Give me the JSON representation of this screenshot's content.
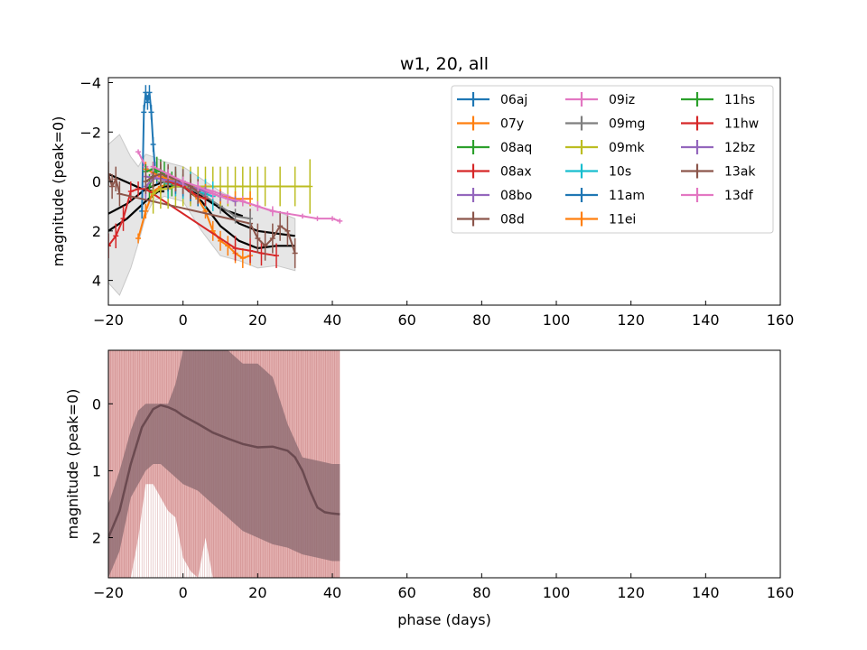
{
  "chart_data": [
    {
      "type": "line",
      "title": "w1, 20, all",
      "xlabel": "",
      "ylabel": "magnitude (peak=0)",
      "xlim": [
        -20,
        160
      ],
      "ylim": [
        5,
        -4.2
      ],
      "y_inverted": true,
      "xticks": [
        -20,
        0,
        20,
        40,
        60,
        80,
        100,
        120,
        140,
        160
      ],
      "yticks": [
        -4,
        -2,
        0,
        2,
        4
      ],
      "legend": {
        "placement": "top-right",
        "columns": 3
      },
      "series": [
        {
          "name": "06aj",
          "color": "#1f77b4",
          "x": [
            -11,
            -10.5,
            -10,
            -9.5,
            -9,
            -8.5,
            -8,
            -7.5,
            -7
          ],
          "y": [
            1.2,
            -2.8,
            -3.6,
            -3.2,
            -3.6,
            -2.8,
            -1.5,
            -0.5,
            -0.2
          ],
          "err": [
            0.3,
            0.3,
            0.3,
            0.3,
            0.3,
            0.3,
            0.3,
            0.3,
            0.3
          ]
        },
        {
          "name": "07y",
          "color": "#ff7f0e",
          "x": [
            -12,
            -10,
            -8,
            -6,
            -4,
            -2,
            0,
            2,
            4,
            6,
            8,
            10,
            12,
            14,
            16,
            18
          ],
          "y": [
            2.3,
            1.2,
            0.4,
            0.2,
            0.1,
            0.1,
            0.2,
            0.4,
            0.7,
            1.2,
            2.0,
            2.4,
            2.6,
            2.9,
            3.1,
            3.0
          ],
          "err": [
            0.2,
            0.3,
            0.3,
            0.3,
            0.3,
            0.3,
            0.3,
            0.3,
            0.3,
            0.3,
            0.4,
            0.4,
            0.4,
            0.4,
            0.4,
            0.4
          ]
        },
        {
          "name": "08aq",
          "color": "#2ca02c",
          "x": [
            -9,
            -8,
            -7,
            -6,
            -5,
            -4,
            -3
          ],
          "y": [
            0.2,
            -0.3,
            -0.5,
            -0.4,
            -0.3,
            0.0,
            0.1
          ],
          "err": [
            0.5,
            0.5,
            0.5,
            0.5,
            0.5,
            0.5,
            0.5
          ]
        },
        {
          "name": "08ax",
          "color": "#d62728",
          "x": [
            -20,
            -18,
            -16,
            -14,
            -12,
            -10,
            14,
            18,
            21,
            25
          ],
          "y": [
            2.6,
            2.2,
            1.5,
            0.4,
            0.3,
            0.3,
            2.7,
            2.8,
            2.9,
            3.0
          ],
          "err": [
            0.5,
            0.5,
            0.5,
            0.4,
            0.3,
            0.3,
            0.5,
            0.5,
            0.5,
            0.5
          ]
        },
        {
          "name": "08bo",
          "color": "#9467bd",
          "x": [
            -10,
            -8,
            -6,
            -4,
            -2,
            0,
            2
          ],
          "y": [
            0.2,
            -0.1,
            -0.2,
            -0.1,
            0.0,
            0.2,
            0.4
          ],
          "err": [
            0.5,
            0.5,
            0.5,
            0.5,
            0.5,
            0.5,
            0.5
          ]
        },
        {
          "name": "08d",
          "color": "#8c564b",
          "x": [
            -20,
            -19,
            -18,
            -17,
            18,
            20,
            22,
            24,
            26,
            28,
            30
          ],
          "y": [
            -0.3,
            0.2,
            -0.1,
            0.5,
            1.7,
            2.3,
            2.6,
            2.3,
            1.8,
            2.0,
            2.9
          ],
          "err": [
            0.5,
            0.5,
            0.5,
            0.5,
            0.6,
            0.6,
            0.6,
            0.6,
            0.6,
            0.6,
            0.6
          ]
        },
        {
          "name": "09iz",
          "color": "#e377c2",
          "x": [
            -12,
            -10,
            -8,
            -6,
            -4,
            -2,
            0,
            4,
            8,
            12,
            16,
            20,
            24,
            28,
            32,
            36,
            40,
            42
          ],
          "y": [
            -1.2,
            -0.6,
            -0.3,
            -0.1,
            0.0,
            0.0,
            0.1,
            0.2,
            0.4,
            0.6,
            0.8,
            1.0,
            1.2,
            1.3,
            1.4,
            1.5,
            1.5,
            1.6
          ],
          "err": [
            0.1,
            0.1,
            0.1,
            0.1,
            0.1,
            0.1,
            0.1,
            0.1,
            0.1,
            0.1,
            0.1,
            0.1,
            0.1,
            0.1,
            0.1,
            0.1,
            0.1,
            0.1
          ]
        },
        {
          "name": "09mg",
          "color": "#7f7f7f",
          "x": [
            -6,
            -2,
            2,
            6,
            10,
            14,
            18
          ],
          "y": [
            0.0,
            0.1,
            0.3,
            0.6,
            1.0,
            1.4,
            1.5
          ],
          "err": [
            0.3,
            0.3,
            0.3,
            0.3,
            0.3,
            0.3,
            0.3
          ]
        },
        {
          "name": "09mk",
          "color": "#bcbd22",
          "x": [
            -8,
            -6,
            -4,
            -2,
            0,
            2,
            4,
            6,
            8,
            10,
            12,
            14,
            16,
            18,
            20,
            22,
            26,
            30,
            34
          ],
          "y": [
            0.5,
            0.3,
            0.3,
            0.2,
            0.2,
            0.2,
            0.2,
            0.2,
            0.2,
            0.2,
            0.2,
            0.2,
            0.2,
            0.2,
            0.2,
            0.2,
            0.2,
            0.2,
            0.2
          ],
          "err": [
            0.8,
            0.8,
            0.8,
            0.8,
            0.8,
            0.8,
            0.8,
            0.8,
            0.8,
            0.8,
            0.8,
            0.8,
            0.8,
            0.8,
            0.8,
            0.8,
            0.8,
            0.8,
            1.1
          ]
        },
        {
          "name": "10s",
          "color": "#17becf",
          "x": [
            -4,
            -2,
            0,
            2,
            4,
            6,
            8
          ],
          "y": [
            0.1,
            0.0,
            0.1,
            0.2,
            0.4,
            0.5,
            0.6
          ],
          "err": [
            0.6,
            0.6,
            0.6,
            0.6,
            0.6,
            0.6,
            0.6
          ]
        },
        {
          "name": "11am",
          "color": "#1f77b4",
          "x": [
            -4,
            -2,
            0,
            2,
            4
          ],
          "y": [
            0.0,
            0.1,
            0.2,
            0.4,
            0.6
          ],
          "err": [
            0.4,
            0.4,
            0.4,
            0.4,
            0.4
          ]
        },
        {
          "name": "11ei",
          "color": "#ff7f0e",
          "x": [
            -10,
            -6,
            -2,
            2,
            6,
            10,
            14,
            18
          ],
          "y": [
            -0.5,
            -0.2,
            0.0,
            0.2,
            0.4,
            0.6,
            0.7,
            0.7
          ],
          "err": [
            0.3,
            0.3,
            0.3,
            0.3,
            0.3,
            0.3,
            0.3,
            0.3
          ]
        },
        {
          "name": "11hs",
          "color": "#2ca02c",
          "x": [
            -10,
            -8,
            -6,
            -4,
            -2,
            0,
            2
          ],
          "y": [
            -0.4,
            -0.5,
            -0.4,
            -0.2,
            -0.1,
            0.0,
            0.2
          ],
          "err": [
            0.3,
            0.3,
            0.3,
            0.3,
            0.3,
            0.3,
            0.3
          ]
        },
        {
          "name": "11hw",
          "color": "#d62728",
          "x": [
            -4,
            -2,
            0,
            2,
            4,
            6
          ],
          "y": [
            0.0,
            0.1,
            0.2,
            0.4,
            0.6,
            0.7
          ],
          "err": [
            0.3,
            0.3,
            0.3,
            0.3,
            0.3,
            0.3
          ]
        },
        {
          "name": "12bz",
          "color": "#9467bd",
          "x": [
            -10,
            -6,
            -2,
            2,
            6,
            10,
            14
          ],
          "y": [
            -0.2,
            -0.1,
            0.0,
            0.2,
            0.4,
            0.6,
            0.8
          ],
          "err": [
            0.2,
            0.2,
            0.2,
            0.2,
            0.2,
            0.2,
            0.2
          ]
        },
        {
          "name": "13ak",
          "color": "#8c564b",
          "x": [
            -10,
            -8,
            -6,
            -4,
            -2,
            0,
            2,
            4
          ],
          "y": [
            0.0,
            -0.2,
            -0.3,
            -0.2,
            -0.1,
            0.0,
            0.2,
            0.4
          ],
          "err": [
            0.5,
            0.5,
            0.5,
            0.5,
            0.5,
            0.5,
            0.5,
            0.5
          ]
        },
        {
          "name": "13df",
          "color": "#e377c2",
          "x": [
            -8,
            -4,
            0,
            4,
            8,
            12,
            16,
            20,
            24
          ],
          "y": [
            -0.6,
            -0.3,
            0.0,
            0.2,
            0.5,
            0.7,
            0.8,
            1.0,
            1.2
          ],
          "err": [
            0.2,
            0.2,
            0.2,
            0.2,
            0.2,
            0.2,
            0.2,
            0.2,
            0.2
          ]
        }
      ],
      "mean_curves": [
        {
          "x": [
            -20,
            -15,
            -10,
            -5,
            0,
            5,
            10,
            15,
            20,
            25,
            30
          ],
          "y": [
            2.0,
            1.5,
            0.8,
            0.2,
            0.2,
            0.8,
            1.8,
            2.4,
            2.7,
            2.6,
            2.6
          ]
        },
        {
          "x": [
            -20,
            -15,
            -10,
            -5,
            0,
            5,
            10,
            15,
            20,
            25,
            30
          ],
          "y": [
            1.3,
            0.9,
            0.3,
            0.0,
            0.0,
            0.5,
            1.1,
            1.7,
            2.0,
            2.1,
            2.2
          ]
        },
        {
          "x": [
            -8,
            -4,
            0,
            4,
            8,
            12,
            16
          ],
          "y": [
            -0.3,
            0.0,
            0.2,
            0.5,
            0.9,
            1.2,
            1.4
          ]
        },
        {
          "x": [
            -20,
            -17,
            -14,
            -11,
            -8,
            -5
          ],
          "y": [
            -0.3,
            -0.1,
            0.1,
            0.3,
            0.4,
            0.4
          ]
        }
      ],
      "shaded_band": {
        "x": [
          -20,
          -17,
          -14,
          -12,
          -10,
          -8,
          -5,
          0,
          5,
          10,
          15,
          20,
          25,
          30
        ],
        "upper": [
          4.1,
          4.6,
          3.5,
          2.5,
          1.4,
          0.8,
          0.6,
          0.8,
          2.0,
          3.0,
          3.2,
          3.5,
          3.4,
          3.6
        ],
        "lower": [
          -1.5,
          -1.9,
          -1.0,
          -0.6,
          -1.1,
          -1.0,
          -0.8,
          -0.6,
          -0.1,
          0.4,
          0.8,
          1.0,
          1.2,
          1.5
        ]
      }
    },
    {
      "type": "line",
      "title": "",
      "xlabel": "phase (days)",
      "ylabel": "magnitude (peak=0)",
      "xlim": [
        -20,
        160
      ],
      "ylim": [
        2.6,
        -0.8
      ],
      "y_inverted": true,
      "xticks": [
        -20,
        0,
        20,
        40,
        60,
        80,
        100,
        120,
        140,
        160
      ],
      "yticks": [
        0,
        1,
        2
      ],
      "mean": {
        "x": [
          -20,
          -17,
          -14,
          -11,
          -8,
          -6,
          -4,
          -2,
          0,
          4,
          8,
          12,
          16,
          20,
          24,
          28,
          30,
          32,
          34,
          36,
          38,
          40,
          42
        ],
        "y": [
          2.0,
          1.6,
          0.9,
          0.35,
          0.08,
          0.02,
          0.05,
          0.1,
          0.18,
          0.3,
          0.43,
          0.52,
          0.6,
          0.65,
          0.64,
          0.7,
          0.8,
          1.0,
          1.3,
          1.55,
          1.62,
          1.64,
          1.65
        ]
      },
      "inner_band": {
        "x": [
          -20,
          -17,
          -14,
          -12,
          -10,
          -8,
          -6,
          -4,
          -2,
          0,
          4,
          8,
          12,
          16,
          20,
          24,
          28,
          32,
          36,
          40,
          42
        ],
        "upper": [
          2.6,
          2.2,
          1.4,
          1.2,
          1.0,
          0.9,
          0.9,
          1.0,
          1.1,
          1.2,
          1.3,
          1.5,
          1.7,
          1.9,
          2.0,
          2.1,
          2.15,
          2.25,
          2.3,
          2.35,
          2.35
        ],
        "lower": [
          1.5,
          1.0,
          0.4,
          0.1,
          0.0,
          0.0,
          0.0,
          0.0,
          -0.3,
          -0.8,
          -0.8,
          -0.8,
          -0.8,
          -0.6,
          -0.6,
          -0.4,
          0.3,
          0.8,
          0.85,
          0.9,
          0.9
        ]
      },
      "outer_band": {
        "x": [
          -20,
          -18,
          -16,
          -14,
          -12,
          -10,
          -8,
          -6,
          -4,
          -2,
          0,
          2,
          4,
          6,
          8,
          10,
          42
        ],
        "upper": [
          2.6,
          2.6,
          2.6,
          2.6,
          2.0,
          1.2,
          1.2,
          1.4,
          1.6,
          1.7,
          2.3,
          2.5,
          2.6,
          2.0,
          2.6,
          2.6,
          2.6
        ],
        "lower": [
          -0.8,
          -0.8,
          -0.8,
          -0.8,
          -0.8,
          -0.8,
          -0.8,
          -0.8,
          -0.8,
          -0.8,
          -0.8,
          -0.8,
          -0.8,
          -0.8,
          -0.8,
          -0.8,
          -0.8
        ]
      },
      "colors": {
        "mean": "#6b4a50",
        "inner_band": "#8a6a70",
        "outer_band": "#e0a7a7",
        "outer_lines": "#c07070"
      }
    }
  ]
}
